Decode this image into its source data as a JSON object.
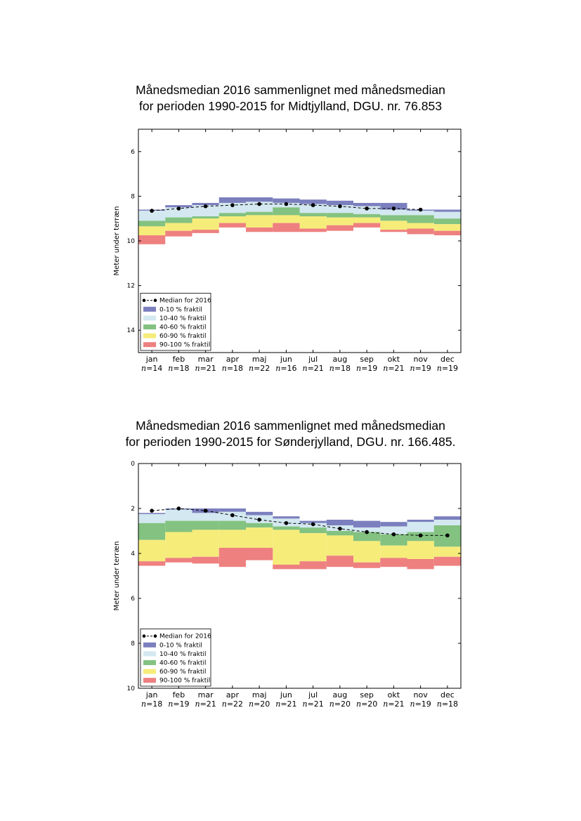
{
  "chart_data": [
    {
      "type": "bar",
      "title_line1": "Månedsmedian 2016 sammenlignet med månedsmedian",
      "title_line2": "for perioden 1990-2015 for Midtjylland, DGU. nr. 76.853",
      "ylabel": "Meter under terræn",
      "ylim": [
        5,
        15
      ],
      "y_inverted": true,
      "yticks": [
        6,
        8,
        10,
        12,
        14
      ],
      "categories": [
        "jan",
        "feb",
        "mar",
        "apr",
        "maj",
        "jun",
        "jul",
        "aug",
        "sep",
        "okt",
        "nov",
        "dec"
      ],
      "n_prefix": "n",
      "n_values": [
        14,
        18,
        21,
        18,
        22,
        16,
        21,
        18,
        19,
        21,
        19,
        19
      ],
      "bands": [
        {
          "name": "0-10 % fraktil",
          "color": "#7b7fbe",
          "lower": [
            8.6,
            8.4,
            8.3,
            8.05,
            8.05,
            8.1,
            8.15,
            8.2,
            8.3,
            8.3,
            8.6,
            8.6
          ],
          "upper": [
            8.65,
            8.5,
            8.4,
            8.3,
            8.25,
            8.3,
            8.35,
            8.4,
            8.45,
            8.6,
            8.65,
            8.7
          ]
        },
        {
          "name": "10-40 % fraktil",
          "color": "#d3e8f0",
          "lower": [
            8.65,
            8.5,
            8.4,
            8.3,
            8.25,
            8.3,
            8.35,
            8.4,
            8.45,
            8.6,
            8.65,
            8.7
          ],
          "upper": [
            9.1,
            8.95,
            8.9,
            8.75,
            8.7,
            8.5,
            8.75,
            8.75,
            8.8,
            8.85,
            8.85,
            9.0
          ]
        },
        {
          "name": "40-60 % fraktil",
          "color": "#83c280",
          "lower": [
            9.1,
            8.95,
            8.9,
            8.75,
            8.7,
            8.5,
            8.75,
            8.75,
            8.8,
            8.85,
            8.85,
            9.0
          ],
          "upper": [
            9.35,
            9.2,
            9.0,
            8.9,
            8.85,
            8.85,
            8.9,
            8.95,
            8.95,
            9.1,
            9.2,
            9.25
          ]
        },
        {
          "name": "60-90 % fraktil",
          "color": "#f6ec7a",
          "lower": [
            9.35,
            9.2,
            9.0,
            8.9,
            8.85,
            8.85,
            8.9,
            8.95,
            8.95,
            9.1,
            9.2,
            9.25
          ],
          "upper": [
            9.75,
            9.55,
            9.5,
            9.2,
            9.4,
            9.2,
            9.45,
            9.3,
            9.2,
            9.5,
            9.45,
            9.55
          ]
        },
        {
          "name": "90-100 % fraktil",
          "color": "#ee8080",
          "lower": [
            9.75,
            9.55,
            9.5,
            9.2,
            9.4,
            9.2,
            9.45,
            9.3,
            9.2,
            9.5,
            9.45,
            9.55
          ],
          "upper": [
            10.15,
            9.8,
            9.65,
            9.4,
            9.6,
            9.6,
            9.6,
            9.55,
            9.4,
            9.6,
            9.7,
            9.75
          ]
        }
      ],
      "median_2016": [
        8.65,
        8.55,
        8.45,
        8.4,
        8.35,
        8.35,
        8.4,
        8.45,
        8.55,
        8.55,
        8.6,
        null
      ],
      "legend": {
        "placement": "lower-left",
        "median_label": "Median for 2016"
      }
    },
    {
      "type": "bar",
      "title_line1": "Månedsmedian 2016 sammenlignet med månedsmedian",
      "title_line2": "for perioden 1990-2015 for Sønderjylland, DGU. nr. 166.485.",
      "ylabel": "Meter under terræn",
      "ylim": [
        0,
        10
      ],
      "y_inverted": true,
      "yticks": [
        0,
        2,
        4,
        6,
        8,
        10
      ],
      "categories": [
        "jan",
        "feb",
        "mar",
        "apr",
        "maj",
        "jun",
        "jul",
        "aug",
        "sep",
        "okt",
        "nov",
        "dec"
      ],
      "n_prefix": "n",
      "n_values": [
        18,
        19,
        21,
        22,
        20,
        21,
        21,
        20,
        20,
        21,
        19,
        18
      ],
      "bands": [
        {
          "name": "0-10 % fraktil",
          "color": "#7b7fbe",
          "lower": [
            2.2,
            2.0,
            2.0,
            2.0,
            2.15,
            2.35,
            2.55,
            2.5,
            2.55,
            2.6,
            2.5,
            2.35
          ],
          "upper": [
            2.25,
            2.05,
            2.2,
            2.15,
            2.3,
            2.45,
            2.65,
            2.75,
            2.85,
            2.8,
            2.6,
            2.5
          ]
        },
        {
          "name": "10-40 % fraktil",
          "color": "#d3e8f0",
          "lower": [
            2.25,
            2.05,
            2.2,
            2.15,
            2.3,
            2.45,
            2.65,
            2.75,
            2.85,
            2.8,
            2.6,
            2.5
          ],
          "upper": [
            2.65,
            2.55,
            2.55,
            2.55,
            2.65,
            2.8,
            2.85,
            3.0,
            3.05,
            3.15,
            3.05,
            2.75
          ]
        },
        {
          "name": "40-60 % fraktil",
          "color": "#83c280",
          "lower": [
            2.65,
            2.55,
            2.55,
            2.55,
            2.65,
            2.8,
            2.85,
            3.0,
            3.05,
            3.15,
            3.05,
            2.75
          ],
          "upper": [
            3.4,
            3.05,
            2.95,
            2.95,
            2.85,
            2.95,
            3.1,
            3.2,
            3.45,
            3.65,
            3.45,
            3.7
          ]
        },
        {
          "name": "60-90 % fraktil",
          "color": "#f6ec7a",
          "lower": [
            3.4,
            3.05,
            2.95,
            2.95,
            2.85,
            2.95,
            3.1,
            3.2,
            3.45,
            3.65,
            3.45,
            3.7
          ],
          "upper": [
            4.35,
            4.2,
            4.15,
            3.75,
            3.75,
            4.5,
            4.35,
            4.1,
            4.4,
            4.2,
            4.25,
            4.15
          ]
        },
        {
          "name": "90-100 % fraktil",
          "color": "#ee8080",
          "lower": [
            4.35,
            4.2,
            4.15,
            3.75,
            3.75,
            4.5,
            4.35,
            4.1,
            4.4,
            4.2,
            4.25,
            4.15
          ],
          "upper": [
            4.55,
            4.4,
            4.45,
            4.6,
            4.3,
            4.7,
            4.7,
            4.6,
            4.65,
            4.6,
            4.7,
            4.55
          ]
        }
      ],
      "median_2016": [
        2.1,
        2.0,
        2.1,
        2.3,
        2.5,
        2.65,
        2.7,
        2.9,
        3.05,
        3.15,
        3.2,
        3.2
      ],
      "legend": {
        "placement": "lower-left",
        "median_label": "Median for 2016"
      }
    }
  ]
}
